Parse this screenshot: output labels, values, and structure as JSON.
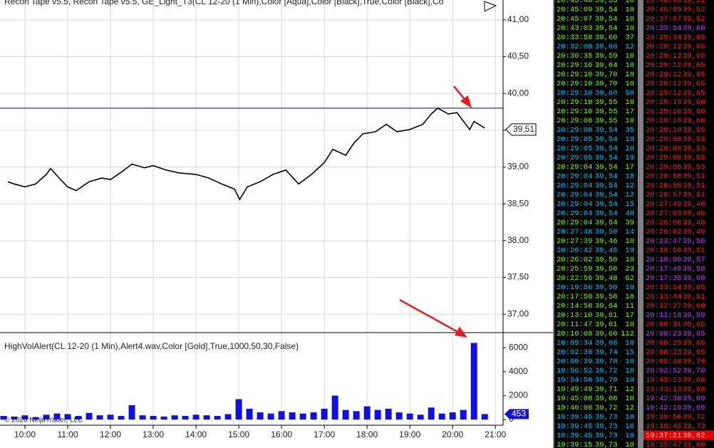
{
  "chart_data": [
    {
      "type": "line",
      "title": "Recon Tape v5.5, Recon Tape v5.5, GE_Light_T3(CL 12-20 (1 Min),Color [Aqua],Color [Black],True,Color [Black],Co",
      "color": "#000000",
      "x": [
        9.6,
        9.75,
        10,
        10.25,
        10.5,
        10.6,
        10.8,
        11,
        11.2,
        11.5,
        11.8,
        12,
        12.3,
        12.5,
        12.8,
        13,
        13.3,
        13.6,
        14,
        14.3,
        14.6,
        14.9,
        15.02,
        15.2,
        15.5,
        15.8,
        16.1,
        16.4,
        16.7,
        17,
        17.2,
        17.5,
        17.7,
        17.9,
        18.2,
        18.45,
        18.7,
        19,
        19.3,
        19.5,
        19.65,
        19.9,
        20.1,
        20.4,
        20.5,
        20.75
      ],
      "values": [
        38.8,
        38.77,
        38.73,
        38.77,
        38.9,
        38.98,
        38.85,
        38.73,
        38.68,
        38.8,
        38.85,
        38.83,
        38.95,
        39.04,
        38.99,
        39.02,
        38.96,
        38.92,
        38.9,
        38.85,
        38.77,
        38.7,
        38.56,
        38.73,
        38.8,
        38.9,
        38.96,
        38.77,
        38.9,
        39.06,
        39.24,
        39.16,
        39.33,
        39.45,
        39.48,
        39.58,
        39.48,
        39.51,
        39.58,
        39.72,
        39.8,
        39.72,
        39.74,
        39.51,
        39.62,
        39.53
      ],
      "xlim": [
        9.417,
        21.18
      ],
      "ylim": [
        36.75,
        41.27
      ],
      "yticks": [
        {
          "value": 41,
          "label": "41,00"
        },
        {
          "value": 40.5,
          "label": "40,50"
        },
        {
          "value": 40,
          "label": "40,00"
        },
        {
          "value": 39.5,
          "label": "39,50"
        },
        {
          "value": 39,
          "label": "39,00"
        },
        {
          "value": 38.5,
          "label": "38,50"
        },
        {
          "value": 38,
          "label": "38,00"
        },
        {
          "value": 37.5,
          "label": "37,50"
        },
        {
          "value": 37,
          "label": "37,00"
        }
      ],
      "hline": 39.8,
      "current": {
        "value": 39.51,
        "label": "39,51"
      },
      "grid": true
    },
    {
      "type": "bar",
      "title": "HighVolAlert(CL 12-20 (1 Min),Alert4.wav,Color [Gold],True,1000,50,30,False)",
      "subtitle": "© 2020 NinjaTrader, LLC",
      "color": "#1010e0",
      "x": [
        9.5,
        9.75,
        10,
        10.25,
        10.5,
        10.75,
        11,
        11.25,
        11.5,
        11.75,
        12,
        12.25,
        12.5,
        12.75,
        13,
        13.25,
        13.5,
        13.75,
        14,
        14.25,
        14.5,
        14.75,
        15,
        15.25,
        15.5,
        15.75,
        16,
        16.25,
        16.5,
        16.75,
        17,
        17.25,
        17.5,
        17.75,
        18,
        18.25,
        18.5,
        18.75,
        19,
        19.25,
        19.5,
        19.75,
        20,
        20.25,
        20.5,
        20.75
      ],
      "values": [
        300,
        250,
        350,
        200,
        400,
        500,
        450,
        300,
        550,
        350,
        400,
        300,
        1200,
        350,
        300,
        250,
        350,
        300,
        400,
        350,
        300,
        450,
        1700,
        900,
        600,
        500,
        700,
        600,
        500,
        600,
        900,
        2000,
        800,
        700,
        1100,
        800,
        900,
        600,
        500,
        400,
        1000,
        500,
        600,
        800,
        6400,
        453
      ],
      "xlim": [
        9.417,
        21.18
      ],
      "ylim": [
        -476,
        7262
      ],
      "yticks": [
        0,
        2000,
        4000,
        6000
      ],
      "xticks": [
        {
          "value": 10,
          "label": "10:00"
        },
        {
          "value": 11,
          "label": "11:00"
        },
        {
          "value": 12,
          "label": "12:00"
        },
        {
          "value": 13,
          "label": "13:00"
        },
        {
          "value": 14,
          "label": "14:00"
        },
        {
          "value": 15,
          "label": "15:00"
        },
        {
          "value": 16,
          "label": "16:00"
        },
        {
          "value": 17,
          "label": "17:00"
        },
        {
          "value": 18,
          "label": "18:00"
        },
        {
          "value": 19,
          "label": "19:00"
        },
        {
          "value": 20,
          "label": "20:00"
        },
        {
          "value": 21,
          "label": "21:00"
        }
      ],
      "current": {
        "value": 453,
        "label": "453"
      },
      "grid": true
    }
  ],
  "tape": {
    "left": {
      "rows": [
        [
          "20:45:48",
          "39,53",
          "10"
        ],
        [
          "20:45:09",
          "39,54",
          "10"
        ],
        [
          "20:45:07",
          "39,54",
          "10"
        ],
        [
          "20:43:03",
          "39,54",
          "10"
        ],
        [
          "20:33:58",
          "39,60",
          "37"
        ],
        [
          "20:32:00",
          "39,60",
          "12"
        ],
        [
          "20:30:35",
          "39,59",
          "10"
        ],
        [
          "20:29:16",
          "39,64",
          "10"
        ],
        [
          "20:29:10",
          "39,70",
          "18"
        ],
        [
          "20:29:10",
          "39,70",
          "10"
        ],
        [
          "20:29:10",
          "39,60",
          "50"
        ],
        [
          "20:29:10",
          "39,55",
          "10"
        ],
        [
          "20:29:10",
          "39,55",
          "17"
        ],
        [
          "20:29:08",
          "39,55",
          "10"
        ],
        [
          "20:29:08",
          "39,54",
          "35"
        ],
        [
          "20:29:05",
          "39,54",
          "10"
        ],
        [
          "20:29:05",
          "39,54",
          "10"
        ],
        [
          "20:29:05",
          "39,54",
          "19"
        ],
        [
          "20:29:04",
          "39,54",
          "17"
        ],
        [
          "20:29:04",
          "39,54",
          "18"
        ],
        [
          "20:29:04",
          "39,54",
          "12"
        ],
        [
          "20:29:04",
          "39,54",
          "12"
        ],
        [
          "20:29:04",
          "39,54",
          "15"
        ],
        [
          "20:29:04",
          "39,54",
          "40"
        ],
        [
          "20:29:04",
          "39,54",
          "39"
        ],
        [
          "20:27:48",
          "39,50",
          "14"
        ],
        [
          "20:27:39",
          "39,46",
          "10"
        ],
        [
          "20:26:42",
          "39,45",
          "19"
        ],
        [
          "20:26:02",
          "39,50",
          "10"
        ],
        [
          "20:25:59",
          "39,50",
          "23"
        ],
        [
          "20:22:56",
          "39,48",
          "62"
        ],
        [
          "20:19:56",
          "39,50",
          "10"
        ],
        [
          "20:17:50",
          "39,58",
          "18"
        ],
        [
          "20:14:58",
          "39,64",
          "11"
        ],
        [
          "20:13:10",
          "39,61",
          "17"
        ],
        [
          "20:11:47",
          "39,61",
          "10"
        ],
        [
          "20:10:08",
          "39,60",
          "112"
        ],
        [
          "20:09:34",
          "39,66",
          "10"
        ],
        [
          "20:02:30",
          "39,74",
          "15"
        ],
        [
          "20:00:39",
          "39,78",
          "10"
        ],
        [
          "19:56:52",
          "39,72",
          "10"
        ],
        [
          "19:54:50",
          "39,70",
          "10"
        ],
        [
          "19:49:49",
          "39,71",
          "12"
        ],
        [
          "19:45:08",
          "39,66",
          "10"
        ],
        [
          "19:40:08",
          "39,72",
          "12"
        ],
        [
          "19:39:45",
          "39,73",
          "10"
        ],
        [
          "19:39:45",
          "39,73",
          "16"
        ],
        [
          "19:39:45",
          "39,73",
          "10"
        ],
        [
          "19:39:15",
          "39,73",
          "10"
        ]
      ],
      "colors": [
        "#80ff00",
        "#80ff00",
        "#80ff00",
        "#80ff00",
        "#80ff00",
        "#00c8ff",
        "#80ff00",
        "#80ff00",
        "#80ff00",
        "#80ff00",
        "#00c8ff",
        "#80ff00",
        "#80ff00",
        "#80ff00",
        "#00c8ff",
        "#00c8ff",
        "#00c8ff",
        "#00c8ff",
        "#80ff00",
        "#00c8ff",
        "#00c8ff",
        "#00c8ff",
        "#00c8ff",
        "#00c8ff",
        "#80ff00",
        "#00c8ff",
        "#80ff00",
        "#00c8ff",
        "#80ff00",
        "#80ff00",
        "#80ff00",
        "#00c8ff",
        "#80ff00",
        "#80ff00",
        "#80ff00",
        "#80ff00",
        "#80ff00",
        "#00c8ff",
        "#00c8ff",
        "#00c8ff",
        "#00c8ff",
        "#00c8ff",
        "#80ff00",
        "#80ff00",
        "#80ff00",
        "#00c8ff",
        "#00c8ff",
        "#00c8ff",
        "#80ff00"
      ]
    },
    "right": {
      "rows": [
        [
          "20:46:00",
          "39,51"
        ],
        [
          "20:45:05",
          "39,52"
        ],
        [
          "20:37:07",
          "39,52"
        ],
        [
          "20:33:54",
          "39,60"
        ],
        [
          "20:29:34",
          "39,65"
        ],
        [
          "20:29:12",
          "39,65"
        ],
        [
          "20:29:12",
          "39,65"
        ],
        [
          "20:29:12",
          "39,65"
        ],
        [
          "20:29:12",
          "39,65"
        ],
        [
          "20:29:12",
          "39,65"
        ],
        [
          "20:29:12",
          "39,65"
        ],
        [
          "20:29:10",
          "39,60"
        ],
        [
          "20:29:10",
          "39,60"
        ],
        [
          "20:29:10",
          "39,60"
        ],
        [
          "20:29:10",
          "39,55"
        ],
        [
          "20:29:08",
          "39,53"
        ],
        [
          "20:29:08",
          "39,53"
        ],
        [
          "20:29:08",
          "39,53"
        ],
        [
          "20:29:08",
          "39,53"
        ],
        [
          "20:28:58",
          "39,51"
        ],
        [
          "20:28:58",
          "39,51"
        ],
        [
          "20:28:57",
          "39,51"
        ],
        [
          "20:27:49",
          "39,48"
        ],
        [
          "20:27:03",
          "39,46"
        ],
        [
          "20:26:08",
          "39,48"
        ],
        [
          "20:26:02",
          "39,49"
        ],
        [
          "20:23:47",
          "39,50"
        ],
        [
          "20:18:56",
          "39,51"
        ],
        [
          "20:18:00",
          "39,57"
        ],
        [
          "20:17:49",
          "39,58"
        ],
        [
          "20:17:38",
          "39,60"
        ],
        [
          "20:13:54",
          "39,65"
        ],
        [
          "20:13:44",
          "39,61"
        ],
        [
          "20:12:27",
          "39,60"
        ],
        [
          "20:11:18",
          "39,59"
        ],
        [
          "20:08:31",
          "39,65"
        ],
        [
          "20:08:23",
          "39,65"
        ],
        [
          "20:08:23",
          "39,65"
        ],
        [
          "20:08:23",
          "39,65"
        ],
        [
          "20:05:48",
          "39,70"
        ],
        [
          "20:02:52",
          "39,70"
        ],
        [
          "19:43:13",
          "39,68"
        ],
        [
          "19:43:13",
          "39,68"
        ],
        [
          "19:42:38",
          "39,69"
        ],
        [
          "19:42:19",
          "39,69"
        ],
        [
          "19:39:56",
          "39,72"
        ],
        [
          "19:39:45",
          "39,73"
        ],
        [
          "19:37:21",
          "39,82"
        ],
        [
          "19:35:47",
          "39,80"
        ]
      ],
      "colors": [
        "#ff2020",
        "#ff2020",
        "#ff2020",
        "#c040ff",
        "#ff2020",
        "#ff2020",
        "#ff2020",
        "#ff2020",
        "#ff2020",
        "#ff2020",
        "#ff2020",
        "#ff2020",
        "#ff2020",
        "#ff2020",
        "#ff2020",
        "#ff2020",
        "#ff2020",
        "#ff2020",
        "#ff2020",
        "#ff2020",
        "#ff2020",
        "#ff2020",
        "#ff2020",
        "#ff2020",
        "#ff2020",
        "#ff2020",
        "#c040ff",
        "#ff2020",
        "#c040ff",
        "#c040ff",
        "#c040ff",
        "#ff2020",
        "#ff2020",
        "#ff2020",
        "#c040ff",
        "#ff2020",
        "#c040ff",
        "#ff2020",
        "#ff2020",
        "#ff2020",
        "#c040ff",
        "#ff2020",
        "#ff2020",
        "#c040ff",
        "#c040ff",
        "#ff2020",
        "#ff2020",
        "#ffd0d0",
        "#ff2020"
      ],
      "highlight": {
        "row": 47,
        "background": "#e00000"
      }
    }
  }
}
